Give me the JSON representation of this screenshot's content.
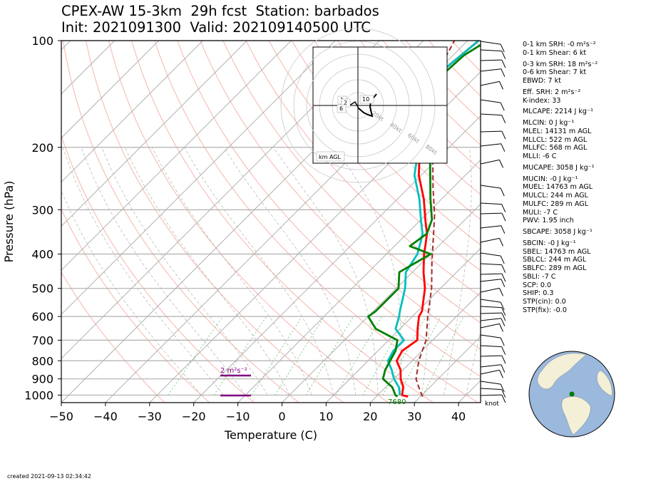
{
  "header": {
    "title_line1": "CPEX-AW 15-3km  29h fcst  Station: barbados",
    "title_line2": "Init: 2021091300  Valid: 202109140500 UTC"
  },
  "footer": {
    "created": "created 2021-09-13 02:34:42"
  },
  "stats": [
    {
      "label": "0-1 km SRH: -0 m²s⁻²",
      "gap": false
    },
    {
      "label": "0-1 km Shear: 6 kt",
      "gap": false
    },
    {
      "label": "0-3 km SRH: 18 m²s⁻²",
      "gap": true
    },
    {
      "label": "0-6 km Shear: 7 kt",
      "gap": false
    },
    {
      "label": "EBWD: 7 kt",
      "gap": false
    },
    {
      "label": "Eff. SRH: 2 m²s⁻²",
      "gap": true
    },
    {
      "label": "K-index: 33",
      "gap": false
    },
    {
      "label": "MLCAPE: 2214 J kg⁻¹",
      "gap": true
    },
    {
      "label": "MLCIN: 0 J kg⁻¹",
      "gap": true
    },
    {
      "label": "MLEL: 14131 m AGL",
      "gap": false
    },
    {
      "label": "MLLCL: 522 m AGL",
      "gap": false
    },
    {
      "label": "MLLFC: 568 m AGL",
      "gap": false
    },
    {
      "label": "MLLI: -6 C",
      "gap": false
    },
    {
      "label": "MUCAPE: 3058 J kg⁻¹",
      "gap": true
    },
    {
      "label": "MUCIN: -0 J kg⁻¹",
      "gap": true
    },
    {
      "label": "MUEL: 14763 m AGL",
      "gap": false
    },
    {
      "label": "MULCL: 244 m AGL",
      "gap": false
    },
    {
      "label": "MULFC: 289 m AGL",
      "gap": false
    },
    {
      "label": "MULI: -7 C",
      "gap": false
    },
    {
      "label": "PWV: 1.95 inch",
      "gap": false
    },
    {
      "label": "SBCAPE: 3058 J kg⁻¹",
      "gap": true
    },
    {
      "label": "SBCIN: -0 J kg⁻¹",
      "gap": true
    },
    {
      "label": "SBEL: 14763 m AGL",
      "gap": false
    },
    {
      "label": "SBLCL: 244 m AGL",
      "gap": false
    },
    {
      "label": "SBLFC: 289 m AGL",
      "gap": false
    },
    {
      "label": "SBLI: -7 C",
      "gap": false
    },
    {
      "label": "SCP: 0.0",
      "gap": false
    },
    {
      "label": "SHIP: 0.3",
      "gap": false
    },
    {
      "label": "STP(cin): 0.0",
      "gap": false
    },
    {
      "label": "STP(fix): -0.0",
      "gap": false
    }
  ],
  "hodograph": {
    "ring_labels": [
      "20kt",
      "40kt",
      "60kt",
      "80kt"
    ],
    "height_labels": [
      "1",
      "2",
      "6",
      "10"
    ],
    "legend": "km AGL"
  },
  "chart_data": {
    "type": "line",
    "title": "CPEX-AW 15-3km  29h fcst  Station: barbados",
    "xlabel": "Temperature (C)",
    "ylabel": "Pressure (hPa)",
    "xlim": [
      -50,
      45
    ],
    "ylim": [
      1050,
      100
    ],
    "y_scale": "log",
    "x_ticks": [
      -50,
      -40,
      -30,
      -20,
      -10,
      0,
      10,
      20,
      30,
      40
    ],
    "y_ticks": [
      100,
      200,
      300,
      400,
      500,
      600,
      700,
      800,
      900,
      1000
    ],
    "grid": true,
    "series": [
      {
        "color": "#ff0000",
        "points": [
          [
            27.2,
            1010
          ],
          [
            25.5,
            1000
          ],
          [
            24,
            950
          ],
          [
            21.5,
            900
          ],
          [
            19.5,
            850
          ],
          [
            16.5,
            800
          ],
          [
            15.5,
            750
          ],
          [
            16.5,
            700
          ],
          [
            14,
            650
          ],
          [
            11.5,
            600
          ],
          [
            11,
            580
          ],
          [
            6.5,
            500
          ],
          [
            2.5,
            450
          ],
          [
            -1.5,
            400
          ],
          [
            -3,
            380
          ],
          [
            -5.5,
            350
          ],
          [
            -9,
            320
          ],
          [
            -14,
            280
          ],
          [
            -20.5,
            240
          ],
          [
            -25,
            210
          ],
          [
            -29.5,
            190
          ],
          [
            -34,
            165
          ],
          [
            -37,
            140
          ],
          [
            -39,
            125
          ],
          [
            -38.5,
            115
          ],
          [
            -37.5,
            100
          ]
        ]
      },
      {
        "color": "#00bfbf",
        "points": [
          [
            25,
            1000
          ],
          [
            23,
            950
          ],
          [
            20,
            900
          ],
          [
            17.5,
            850
          ],
          [
            14.5,
            800
          ],
          [
            13.5,
            750
          ],
          [
            13.5,
            700
          ],
          [
            9,
            650
          ],
          [
            7,
            600
          ],
          [
            6,
            580
          ],
          [
            2,
            500
          ],
          [
            -1.5,
            450
          ],
          [
            -3,
            400
          ],
          [
            -5,
            370
          ],
          [
            -6.5,
            350
          ],
          [
            -10,
            320
          ],
          [
            -15,
            280
          ],
          [
            -21.5,
            240
          ],
          [
            -25.5,
            210
          ],
          [
            -29.5,
            190
          ],
          [
            -34.5,
            165
          ],
          [
            -37.5,
            140
          ],
          [
            -39,
            125
          ],
          [
            -38.5,
            115
          ],
          [
            -37.5,
            100
          ]
        ]
      },
      {
        "color": "#008000",
        "points": [
          [
            24.8,
            1010
          ],
          [
            24,
            1000
          ],
          [
            21.5,
            950
          ],
          [
            17.5,
            900
          ],
          [
            16,
            850
          ],
          [
            15,
            800
          ],
          [
            14,
            750
          ],
          [
            12,
            700
          ],
          [
            4.5,
            650
          ],
          [
            0,
            600
          ],
          [
            0.5,
            580
          ],
          [
            0.5,
            500
          ],
          [
            -3,
            450
          ],
          [
            0,
            400
          ],
          [
            -6.5,
            380
          ],
          [
            -5.5,
            350
          ],
          [
            -7.5,
            320
          ],
          [
            -12.5,
            280
          ],
          [
            -21,
            220
          ],
          [
            -31,
            175
          ],
          [
            -32.5,
            160
          ],
          [
            -36.5,
            140
          ],
          [
            -38,
            125
          ],
          [
            -37.5,
            110
          ],
          [
            -35.5,
            100
          ]
        ]
      },
      {
        "color": "#a52a2a",
        "dashed": true,
        "points": [
          [
            30.5,
            1010
          ],
          [
            29,
            980
          ],
          [
            27.5,
            950
          ],
          [
            25,
            900
          ],
          [
            21.5,
            800
          ],
          [
            18.5,
            700
          ],
          [
            13.5,
            600
          ],
          [
            8,
            500
          ],
          [
            2,
            420
          ],
          [
            -4,
            350
          ],
          [
            -8,
            310
          ],
          [
            -14.5,
            260
          ],
          [
            -22,
            210
          ],
          [
            -30,
            170
          ],
          [
            -35,
            145
          ],
          [
            -40,
            120
          ],
          [
            -43,
            100
          ]
        ]
      }
    ],
    "annotations": [
      {
        "text": "2 m²s⁻²",
        "color": "#800080"
      },
      {
        "text": "7680",
        "color": "#008000"
      },
      {
        "text": "knot",
        "color": "#000000"
      }
    ],
    "legend": "none"
  }
}
